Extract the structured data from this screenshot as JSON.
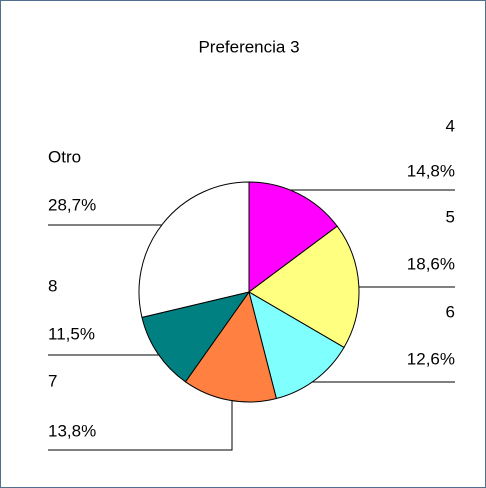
{
  "chart_data": {
    "type": "pie",
    "title": "Preferencia 3",
    "categories": [
      "4",
      "5",
      "6",
      "7",
      "8",
      "Otro"
    ],
    "values": [
      14.8,
      18.6,
      12.6,
      13.8,
      11.5,
      28.7
    ],
    "value_labels": [
      "14,8%",
      "18,6%",
      "12,6%",
      "13,8%",
      "11,5%",
      "28,7%"
    ],
    "colors": [
      "#ff00ff",
      "#ffff80",
      "#80ffff",
      "#ff8040",
      "#008080",
      "#ffffff"
    ]
  }
}
